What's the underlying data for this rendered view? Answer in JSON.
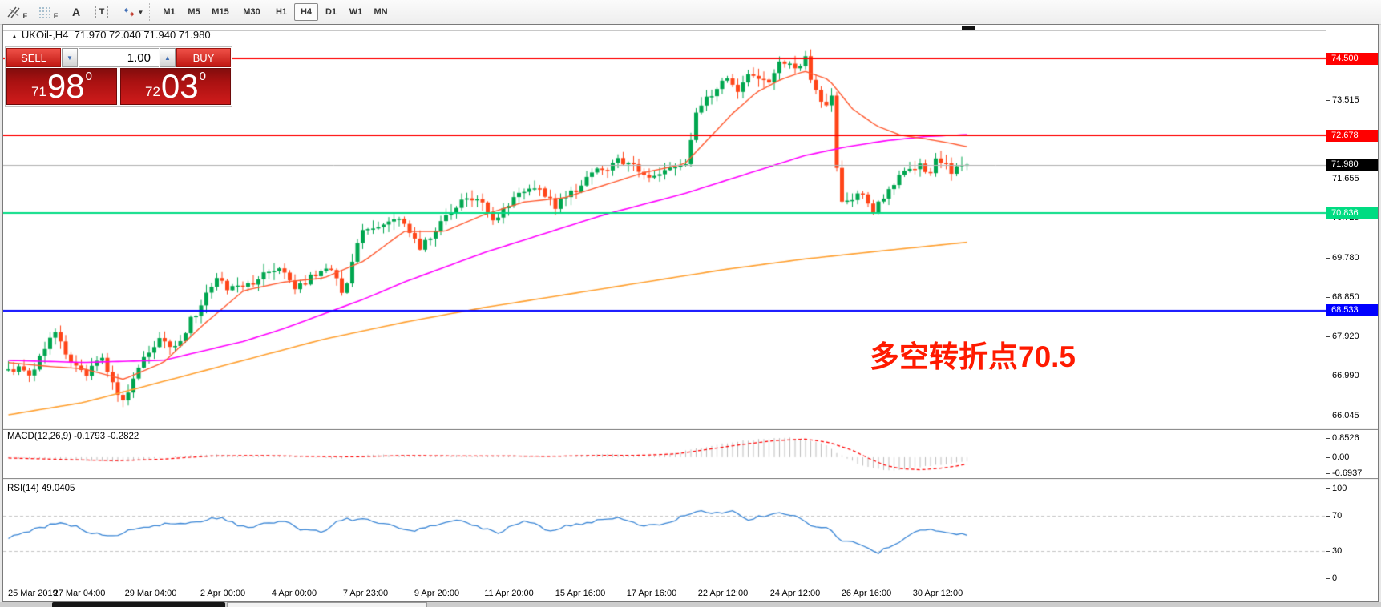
{
  "toolbar": {
    "tools": [
      {
        "id": "draw-lines",
        "label": "E"
      },
      {
        "id": "fibonacci",
        "label": "F"
      },
      {
        "id": "text",
        "label": "A"
      },
      {
        "id": "text-label",
        "label": "T"
      },
      {
        "id": "arrows",
        "label": ""
      }
    ],
    "caret": "▼",
    "timeframes": [
      "M1",
      "M5",
      "M15",
      "M30",
      "H1",
      "H4",
      "D1",
      "W1",
      "MN"
    ],
    "active_timeframe": "H4"
  },
  "title": {
    "arrow": "▲",
    "symbol": "UKOil-,H4",
    "ohlc": "71.970 72.040 71.940 71.980"
  },
  "trade": {
    "sell_label": "SELL",
    "buy_label": "BUY",
    "volume": "1.00",
    "sell": {
      "prefix": "71",
      "big": "98",
      "sup": "0"
    },
    "buy": {
      "prefix": "72",
      "big": "03",
      "sup": "0"
    }
  },
  "levels": [
    {
      "label": "74.500",
      "price": 74.5,
      "color": "#FF0000",
      "line_width": 2
    },
    {
      "label": "72.678",
      "price": 72.678,
      "color": "#FF0000",
      "line_width": 2
    },
    {
      "label": "71.980",
      "price": 71.98,
      "color": "#000000",
      "line_color": "#B0B0B0",
      "line_width": 1
    },
    {
      "label": "70.836",
      "price": 70.836,
      "color": "#00DC82",
      "line_width": 2
    },
    {
      "label": "68.533",
      "price": 68.533,
      "color": "#0000FF",
      "line_width": 2
    }
  ],
  "y_ticks": [
    {
      "label": "73.515",
      "price": 73.515
    },
    {
      "label": "72.585",
      "price": 72.585
    },
    {
      "label": "71.655",
      "price": 71.655
    },
    {
      "label": "70.725",
      "price": 70.725
    },
    {
      "label": "69.780",
      "price": 69.78
    },
    {
      "label": "68.850",
      "price": 68.85
    },
    {
      "label": "67.920",
      "price": 67.92
    },
    {
      "label": "66.990",
      "price": 66.99
    },
    {
      "label": "66.045",
      "price": 66.045
    }
  ],
  "indicators": {
    "macd": {
      "name": "MACD(12,26,9)",
      "values": "-0.1793 -0.2822",
      "ticks": [
        {
          "label": "0.8526",
          "value": 0.8526
        },
        {
          "label": "0.00",
          "value": 0.0
        },
        {
          "label": "-0.6937",
          "value": -0.6937
        }
      ],
      "hist_color": "#BDBDBD",
      "signal_color": "#FF0000"
    },
    "rsi": {
      "name": "RSI(14)",
      "values": "49.0405",
      "ticks": [
        {
          "label": "100",
          "value": 100
        },
        {
          "label": "70",
          "value": 70
        },
        {
          "label": "30",
          "value": 30
        },
        {
          "label": "0",
          "value": 0
        }
      ],
      "dashed_levels": [
        70,
        30
      ],
      "line_color": "#3A86D6",
      "dash_color": "#C4C4C4"
    }
  },
  "annotation": {
    "text": "多空转折点70.5",
    "color": "#FF1A00"
  },
  "x_labels": [
    "25 Mar 2019",
    "27 Mar 04:00",
    "29 Mar 04:00",
    "2 Apr 00:00",
    "4 Apr 00:00",
    "7 Apr 23:00",
    "9 Apr 20:00",
    "11 Apr 20:00",
    "15 Apr 16:00",
    "17 Apr 16:00",
    "22 Apr 12:00",
    "24 Apr 12:00",
    "26 Apr 16:00",
    "30 Apr 12:00"
  ],
  "chart_data": {
    "type": "candlestick",
    "symbol": "UKOil-",
    "timeframe": "H4",
    "candle_count": 185,
    "colors": {
      "up": "#00A64F",
      "down": "#FF4519",
      "ma_fast": "#FF5A30",
      "ma_mid": "#FF00FF",
      "ma_slow": "#FFA030"
    },
    "close_anchors": [
      [
        8,
        67.2
      ],
      [
        30,
        67.0
      ],
      [
        62,
        68.0
      ],
      [
        85,
        67.2
      ],
      [
        100,
        67.0
      ],
      [
        118,
        67.5
      ],
      [
        140,
        66.5
      ],
      [
        148,
        66.3
      ],
      [
        165,
        67.1
      ],
      [
        192,
        67.9
      ],
      [
        210,
        67.6
      ],
      [
        235,
        68.4
      ],
      [
        262,
        69.3
      ],
      [
        285,
        69.0
      ],
      [
        310,
        69.2
      ],
      [
        345,
        69.6
      ],
      [
        362,
        69.0
      ],
      [
        385,
        69.4
      ],
      [
        410,
        69.5
      ],
      [
        422,
        68.9
      ],
      [
        445,
        70.4
      ],
      [
        470,
        70.5
      ],
      [
        492,
        70.8
      ],
      [
        515,
        70.0
      ],
      [
        540,
        70.5
      ],
      [
        568,
        71.1
      ],
      [
        590,
        71.2
      ],
      [
        612,
        70.6
      ],
      [
        640,
        71.4
      ],
      [
        665,
        71.5
      ],
      [
        685,
        71.0
      ],
      [
        712,
        71.4
      ],
      [
        745,
        71.9
      ],
      [
        772,
        72.1
      ],
      [
        800,
        71.7
      ],
      [
        825,
        71.9
      ],
      [
        850,
        72.0
      ],
      [
        862,
        73.3
      ],
      [
        880,
        73.6
      ],
      [
        900,
        74.0
      ],
      [
        915,
        73.7
      ],
      [
        930,
        74.2
      ],
      [
        950,
        73.9
      ],
      [
        968,
        74.4
      ],
      [
        985,
        74.3
      ],
      [
        998,
        74.5
      ],
      [
        1010,
        73.8
      ],
      [
        1022,
        73.3
      ],
      [
        1032,
        73.6
      ],
      [
        1040,
        71.0
      ],
      [
        1055,
        71.1
      ],
      [
        1070,
        71.3
      ],
      [
        1082,
        70.9
      ],
      [
        1095,
        71.2
      ],
      [
        1110,
        71.5
      ],
      [
        1125,
        71.9
      ],
      [
        1140,
        72.0
      ],
      [
        1152,
        71.8
      ],
      [
        1165,
        72.2
      ],
      [
        1178,
        71.8
      ],
      [
        1192,
        71.9
      ],
      [
        1205,
        71.98
      ]
    ],
    "ma_fast_anchors": [
      [
        4,
        67.3
      ],
      [
        60,
        67.2
      ],
      [
        100,
        67.15
      ],
      [
        150,
        66.9
      ],
      [
        200,
        67.3
      ],
      [
        250,
        68.2
      ],
      [
        300,
        69.0
      ],
      [
        350,
        69.2
      ],
      [
        400,
        69.3
      ],
      [
        450,
        69.7
      ],
      [
        500,
        70.4
      ],
      [
        550,
        70.4
      ],
      [
        600,
        70.8
      ],
      [
        650,
        71.1
      ],
      [
        700,
        71.2
      ],
      [
        750,
        71.5
      ],
      [
        800,
        71.8
      ],
      [
        850,
        72.0
      ],
      [
        880,
        72.6
      ],
      [
        910,
        73.2
      ],
      [
        940,
        73.7
      ],
      [
        970,
        74.0
      ],
      [
        1000,
        74.2
      ],
      [
        1030,
        74.0
      ],
      [
        1060,
        73.3
      ],
      [
        1090,
        72.9
      ],
      [
        1120,
        72.68
      ],
      [
        1150,
        72.6
      ],
      [
        1180,
        72.5
      ],
      [
        1205,
        72.4
      ]
    ],
    "ma_mid_anchors": [
      [
        4,
        67.35
      ],
      [
        100,
        67.3
      ],
      [
        200,
        67.35
      ],
      [
        300,
        67.8
      ],
      [
        350,
        68.1
      ],
      [
        400,
        68.45
      ],
      [
        450,
        68.8
      ],
      [
        500,
        69.2
      ],
      [
        550,
        69.55
      ],
      [
        600,
        69.9
      ],
      [
        650,
        70.2
      ],
      [
        700,
        70.5
      ],
      [
        750,
        70.8
      ],
      [
        800,
        71.05
      ],
      [
        850,
        71.3
      ],
      [
        900,
        71.6
      ],
      [
        950,
        71.9
      ],
      [
        1000,
        72.2
      ],
      [
        1050,
        72.4
      ],
      [
        1100,
        72.55
      ],
      [
        1150,
        72.65
      ],
      [
        1205,
        72.7
      ]
    ],
    "ma_slow_anchors": [
      [
        4,
        66.05
      ],
      [
        100,
        66.35
      ],
      [
        200,
        66.85
      ],
      [
        300,
        67.35
      ],
      [
        400,
        67.85
      ],
      [
        500,
        68.25
      ],
      [
        600,
        68.6
      ],
      [
        700,
        68.9
      ],
      [
        800,
        69.2
      ],
      [
        900,
        69.5
      ],
      [
        1000,
        69.75
      ],
      [
        1100,
        69.95
      ],
      [
        1205,
        70.15
      ]
    ],
    "macd_hist_anchors": [
      [
        4,
        -0.02
      ],
      [
        60,
        -0.1
      ],
      [
        100,
        -0.14
      ],
      [
        140,
        -0.22
      ],
      [
        170,
        -0.12
      ],
      [
        200,
        -0.02
      ],
      [
        230,
        0.08
      ],
      [
        260,
        0.12
      ],
      [
        300,
        0.06
      ],
      [
        340,
        0.1
      ],
      [
        380,
        0.02
      ],
      [
        420,
        -0.06
      ],
      [
        450,
        0.1
      ],
      [
        480,
        0.12
      ],
      [
        520,
        0.02
      ],
      [
        560,
        0.1
      ],
      [
        600,
        0.04
      ],
      [
        640,
        0.1
      ],
      [
        680,
        0.0
      ],
      [
        720,
        0.08
      ],
      [
        760,
        0.14
      ],
      [
        800,
        0.06
      ],
      [
        830,
        0.12
      ],
      [
        860,
        0.35
      ],
      [
        890,
        0.55
      ],
      [
        920,
        0.7
      ],
      [
        950,
        0.8
      ],
      [
        980,
        0.85
      ],
      [
        1005,
        0.75
      ],
      [
        1025,
        0.55
      ],
      [
        1040,
        0.2
      ],
      [
        1055,
        -0.1
      ],
      [
        1070,
        -0.35
      ],
      [
        1090,
        -0.52
      ],
      [
        1110,
        -0.58
      ],
      [
        1130,
        -0.5
      ],
      [
        1150,
        -0.4
      ],
      [
        1170,
        -0.32
      ],
      [
        1190,
        -0.24
      ],
      [
        1205,
        -0.1793
      ]
    ],
    "macd_signal_anchors": [
      [
        4,
        -0.03
      ],
      [
        80,
        -0.1
      ],
      [
        140,
        -0.15
      ],
      [
        200,
        -0.08
      ],
      [
        260,
        0.06
      ],
      [
        320,
        0.08
      ],
      [
        380,
        0.04
      ],
      [
        440,
        0.02
      ],
      [
        500,
        0.08
      ],
      [
        560,
        0.06
      ],
      [
        620,
        0.06
      ],
      [
        680,
        0.04
      ],
      [
        740,
        0.08
      ],
      [
        800,
        0.09
      ],
      [
        840,
        0.15
      ],
      [
        880,
        0.35
      ],
      [
        920,
        0.55
      ],
      [
        960,
        0.72
      ],
      [
        1000,
        0.8
      ],
      [
        1030,
        0.65
      ],
      [
        1060,
        0.3
      ],
      [
        1080,
        -0.05
      ],
      [
        1100,
        -0.35
      ],
      [
        1120,
        -0.5
      ],
      [
        1145,
        -0.55
      ],
      [
        1170,
        -0.48
      ],
      [
        1190,
        -0.38
      ],
      [
        1205,
        -0.2822
      ]
    ],
    "rsi_anchors": [
      [
        4,
        45
      ],
      [
        40,
        55
      ],
      [
        70,
        62
      ],
      [
        90,
        58
      ],
      [
        110,
        50
      ],
      [
        140,
        48
      ],
      [
        160,
        55
      ],
      [
        200,
        60
      ],
      [
        240,
        62
      ],
      [
        270,
        68
      ],
      [
        290,
        60
      ],
      [
        310,
        57
      ],
      [
        330,
        62
      ],
      [
        350,
        64
      ],
      [
        370,
        55
      ],
      [
        400,
        52
      ],
      [
        420,
        66
      ],
      [
        450,
        65
      ],
      [
        480,
        60
      ],
      [
        510,
        52
      ],
      [
        540,
        60
      ],
      [
        570,
        64
      ],
      [
        600,
        55
      ],
      [
        620,
        50
      ],
      [
        640,
        62
      ],
      [
        660,
        63
      ],
      [
        680,
        52
      ],
      [
        700,
        58
      ],
      [
        720,
        60
      ],
      [
        745,
        65
      ],
      [
        770,
        68
      ],
      [
        800,
        58
      ],
      [
        830,
        62
      ],
      [
        855,
        72
      ],
      [
        875,
        75
      ],
      [
        895,
        72
      ],
      [
        910,
        74
      ],
      [
        930,
        65
      ],
      [
        950,
        70
      ],
      [
        970,
        73
      ],
      [
        990,
        68
      ],
      [
        1010,
        58
      ],
      [
        1030,
        55
      ],
      [
        1045,
        42
      ],
      [
        1060,
        40
      ],
      [
        1075,
        35
      ],
      [
        1090,
        28
      ],
      [
        1105,
        35
      ],
      [
        1120,
        42
      ],
      [
        1135,
        52
      ],
      [
        1150,
        55
      ],
      [
        1165,
        52
      ],
      [
        1180,
        50
      ],
      [
        1205,
        49.04
      ]
    ]
  }
}
